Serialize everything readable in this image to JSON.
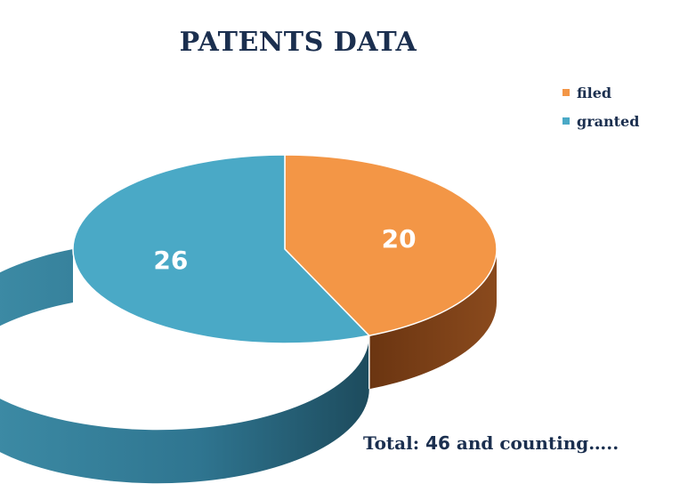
{
  "chart_data": {
    "type": "pie",
    "title": "PATENTS DATA",
    "categories": [
      "filed",
      "granted"
    ],
    "values": [
      20,
      26
    ],
    "colors": [
      "#f39646",
      "#4aa9c6"
    ],
    "side_colors": [
      "#7a3d14",
      "#2f7590"
    ],
    "legend_position": "top-right",
    "three_d": true
  },
  "footer": {
    "prefix": "Total: ",
    "total": "46",
    "suffix": " and counting….."
  }
}
